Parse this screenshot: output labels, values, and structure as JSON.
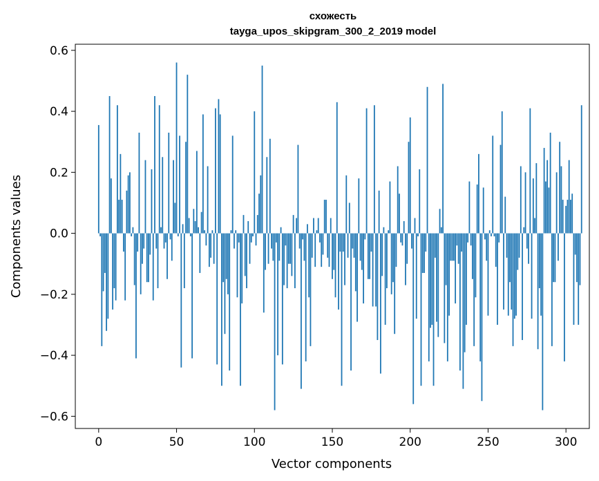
{
  "chart_data": {
    "type": "bar",
    "title": "схожесть\ntayga_upos_skipgram_300_2_2019 model",
    "title_lines": [
      "схожесть",
      "tayga_upos_skipgram_300_2_2019 model"
    ],
    "xlabel": "Vector components",
    "ylabel": "Components values",
    "xlim": [
      -15,
      315
    ],
    "ylim": [
      -0.64,
      0.62
    ],
    "xticks": [
      0,
      50,
      100,
      150,
      200,
      250,
      300
    ],
    "xtick_labels": [
      "0",
      "50",
      "100",
      "150",
      "200",
      "250",
      "300"
    ],
    "yticks": [
      -0.6,
      -0.4,
      -0.2,
      0.0,
      0.2,
      0.4,
      0.6
    ],
    "ytick_labels": [
      "−0.6",
      "−0.4",
      "−0.2",
      "0.0",
      "0.2",
      "0.4",
      "0.6"
    ],
    "grid": false,
    "bar_color": "#1f77b4",
    "x_start": 0,
    "values": [
      0.355,
      -0.01,
      -0.37,
      -0.19,
      -0.13,
      -0.32,
      -0.28,
      0.45,
      0.18,
      -0.25,
      -0.18,
      -0.22,
      0.42,
      0.11,
      0.26,
      0.11,
      -0.06,
      -0.22,
      0.14,
      0.19,
      0.2,
      -0.01,
      0.02,
      -0.17,
      -0.41,
      -0.06,
      0.33,
      -0.2,
      -0.1,
      -0.05,
      0.24,
      -0.16,
      -0.16,
      -0.07,
      0.21,
      -0.22,
      0.45,
      -0.05,
      -0.18,
      0.42,
      0.02,
      0.25,
      -0.05,
      -0.03,
      -0.15,
      0.33,
      -0.02,
      -0.09,
      0.24,
      0.1,
      0.56,
      -0.01,
      0.32,
      -0.44,
      0.03,
      -0.18,
      0.3,
      0.52,
      0.05,
      -0.01,
      -0.41,
      0.08,
      0.04,
      0.27,
      0.02,
      -0.13,
      0.07,
      0.39,
      0.01,
      -0.04,
      0.22,
      -0.11,
      -0.08,
      0.01,
      -0.1,
      0.41,
      -0.43,
      0.44,
      0.39,
      -0.5,
      -0.16,
      -0.33,
      -0.15,
      -0.2,
      -0.45,
      0.01,
      0.32,
      -0.05,
      0.01,
      -0.21,
      -0.03,
      -0.5,
      -0.23,
      0.06,
      -0.14,
      -0.18,
      0.04,
      -0.1,
      -0.03,
      -0.01,
      0.4,
      -0.04,
      0.06,
      0.13,
      0.19,
      0.55,
      -0.26,
      -0.12,
      0.25,
      -0.1,
      0.31,
      -0.05,
      -0.09,
      -0.58,
      -0.03,
      -0.4,
      -0.09,
      0.02,
      -0.43,
      -0.17,
      -0.04,
      -0.18,
      -0.1,
      -0.1,
      -0.14,
      0.06,
      -0.18,
      0.05,
      0.29,
      -0.05,
      -0.51,
      -0.02,
      -0.09,
      -0.42,
      0.03,
      -0.21,
      -0.37,
      -0.08,
      0.05,
      -0.11,
      0.01,
      0.05,
      -0.03,
      -0.11,
      -0.07,
      0.11,
      0.11,
      -0.08,
      -0.11,
      0.05,
      -0.15,
      -0.12,
      -0.21,
      0.43,
      -0.25,
      -0.06,
      -0.5,
      -0.06,
      -0.17,
      0.19,
      -0.08,
      0.1,
      -0.45,
      -0.05,
      -0.08,
      -0.19,
      -0.29,
      0.18,
      -0.09,
      -0.12,
      -0.23,
      -0.02,
      0.41,
      -0.15,
      -0.15,
      -0.06,
      -0.24,
      0.42,
      -0.24,
      -0.35,
      0.14,
      -0.46,
      -0.14,
      0.02,
      -0.3,
      -0.18,
      0.01,
      0.17,
      -0.2,
      -0.16,
      -0.33,
      -0.11,
      0.22,
      0.13,
      -0.03,
      -0.04,
      0.04,
      -0.17,
      -0.1,
      0.3,
      0.38,
      -0.05,
      -0.56,
      0.05,
      -0.28,
      -0.01,
      0.21,
      -0.5,
      -0.13,
      -0.13,
      -0.06,
      0.48,
      -0.42,
      -0.31,
      -0.3,
      -0.5,
      -0.08,
      -0.29,
      -0.34,
      0.08,
      0.02,
      0.49,
      -0.36,
      -0.17,
      -0.42,
      -0.27,
      -0.09,
      -0.09,
      -0.09,
      -0.23,
      -0.04,
      -0.1,
      -0.45,
      -0.06,
      -0.51,
      -0.39,
      -0.3,
      -0.03,
      0.17,
      -0.04,
      -0.15,
      -0.37,
      -0.21,
      0.16,
      0.26,
      -0.42,
      -0.55,
      0.15,
      -0.02,
      -0.09,
      -0.27,
      0.01,
      -0.01,
      0.32,
      -0.01,
      -0.11,
      -0.3,
      -0.03,
      0.29,
      0.4,
      -0.25,
      0.12,
      -0.08,
      -0.27,
      -0.16,
      -0.25,
      -0.37,
      -0.28,
      -0.27,
      -0.12,
      -0.08,
      0.22,
      -0.35,
      0.02,
      0.2,
      -0.05,
      -0.1,
      0.41,
      -0.28,
      0.18,
      0.05,
      0.23,
      -0.38,
      -0.18,
      -0.27,
      -0.58,
      0.28,
      0.17,
      0.24,
      0.15,
      0.33,
      -0.37,
      -0.16,
      -0.16,
      0.2,
      -0.09,
      0.3,
      0.22,
      0.11,
      -0.42,
      0.09,
      0.11,
      0.24,
      0.11,
      0.13,
      -0.3,
      -0.07,
      -0.16,
      -0.3,
      -0.17,
      0.42
    ]
  }
}
